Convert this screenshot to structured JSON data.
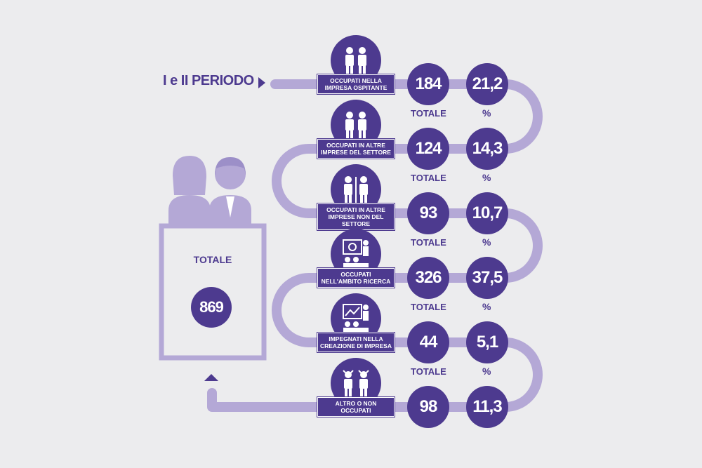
{
  "period_label": "I e II PERIODO",
  "total": {
    "label": "TOTALE",
    "value": "869"
  },
  "col_headers": {
    "total": "TOTALE",
    "percent": "%"
  },
  "rows": [
    {
      "label": "OCCUPATI NELLA\nIMPRESA OSPITANTE",
      "icon": "two-businessmen-icon",
      "total": "184",
      "percent": "21,2"
    },
    {
      "label": "OCCUPATI IN ALTRE\nIMPRESE DEL SETTORE",
      "icon": "two-businessmen-icon",
      "total": "124",
      "percent": "14,3"
    },
    {
      "label": "OCCUPATI IN ALTRE\nIMPRESE NON DEL SETTORE",
      "icon": "two-businessmen-separated-icon",
      "total": "93",
      "percent": "10,7"
    },
    {
      "label": "OCCUPATI\nNELL'AMBITO RICERCA",
      "icon": "research-presentation-icon",
      "total": "326",
      "percent": "37,5"
    },
    {
      "label": "IMPEGNATI NELLA\nCREAZIONE DI IMPRESA",
      "icon": "business-presentation-icon",
      "total": "44",
      "percent": "5,1"
    },
    {
      "label": "ALTRO O NON\nOCCUPATI",
      "icon": "people-thinking-icon",
      "total": "98",
      "percent": "11,3"
    }
  ],
  "colors": {
    "primary": "#4d3a8f",
    "light": "#b4a8d6",
    "background": "#ececee"
  }
}
